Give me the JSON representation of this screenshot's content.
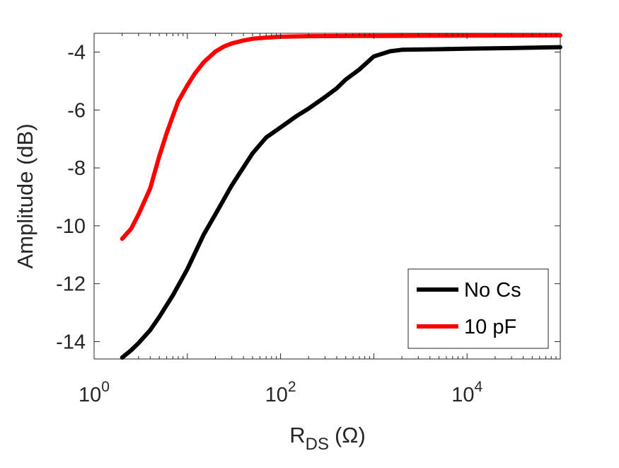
{
  "chart_data": {
    "type": "line",
    "xlabel": "R",
    "xlabel_sub": "DS",
    "xlabel_unit": "(Ω)",
    "ylabel": "Amplitude (dB)",
    "xscale": "log",
    "xlim": [
      1,
      100000
    ],
    "ylim": [
      -14.6,
      -3.35
    ],
    "xticks": [
      {
        "value": 1,
        "base": "10",
        "exp": "0"
      },
      {
        "value": 100,
        "base": "10",
        "exp": "2"
      },
      {
        "value": 10000,
        "base": "10",
        "exp": "4"
      }
    ],
    "yticks": [
      -14,
      -12,
      -10,
      -8,
      -6,
      -4
    ],
    "ytick_labels": [
      "-14",
      "-12",
      "-10",
      "-8",
      "-6",
      "-4"
    ],
    "grid": false,
    "legend_position": "bottom-right",
    "series": [
      {
        "name": "No Cs",
        "color": "#000000",
        "points": [
          [
            2,
            -14.55
          ],
          [
            2.5,
            -14.3
          ],
          [
            3,
            -14.05
          ],
          [
            4,
            -13.6
          ],
          [
            5,
            -13.15
          ],
          [
            7,
            -12.4
          ],
          [
            10,
            -11.5
          ],
          [
            15,
            -10.3
          ],
          [
            20,
            -9.6
          ],
          [
            30,
            -8.6
          ],
          [
            50,
            -7.5
          ],
          [
            70,
            -6.95
          ],
          [
            100,
            -6.6
          ],
          [
            150,
            -6.2
          ],
          [
            200,
            -5.95
          ],
          [
            300,
            -5.55
          ],
          [
            400,
            -5.25
          ],
          [
            500,
            -4.95
          ],
          [
            700,
            -4.6
          ],
          [
            1000,
            -4.15
          ],
          [
            1500,
            -3.97
          ],
          [
            2000,
            -3.92
          ],
          [
            5000,
            -3.9
          ],
          [
            10000,
            -3.88
          ],
          [
            30000,
            -3.86
          ],
          [
            100000,
            -3.83
          ]
        ]
      },
      {
        "name": "10 pF",
        "color": "#ff0000",
        "points": [
          [
            2,
            -10.45
          ],
          [
            2.5,
            -10.1
          ],
          [
            3,
            -9.6
          ],
          [
            4,
            -8.7
          ],
          [
            5,
            -7.6
          ],
          [
            6,
            -6.8
          ],
          [
            7,
            -6.2
          ],
          [
            8,
            -5.7
          ],
          [
            10,
            -5.15
          ],
          [
            12,
            -4.75
          ],
          [
            15,
            -4.35
          ],
          [
            20,
            -3.98
          ],
          [
            25,
            -3.8
          ],
          [
            30,
            -3.7
          ],
          [
            40,
            -3.6
          ],
          [
            50,
            -3.54
          ],
          [
            70,
            -3.5
          ],
          [
            100,
            -3.47
          ],
          [
            200,
            -3.45
          ],
          [
            1000,
            -3.44
          ],
          [
            10000,
            -3.43
          ],
          [
            100000,
            -3.42
          ]
        ]
      }
    ]
  }
}
